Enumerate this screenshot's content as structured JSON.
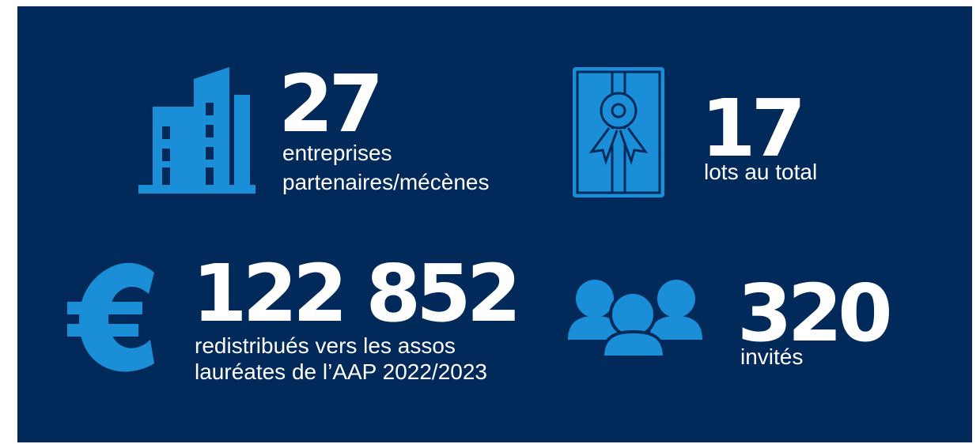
{
  "stats": [
    {
      "value": "27",
      "lines": [
        "entreprises",
        "partenaires/mécènes"
      ]
    },
    {
      "value": "17",
      "lines": [
        "lots au total"
      ]
    },
    {
      "value": "122 852",
      "lines": [
        "redistribués vers les assos",
        "lauréates de l’AAP 2022/2023"
      ]
    },
    {
      "value": "320",
      "lines": [
        "invités"
      ]
    }
  ]
}
